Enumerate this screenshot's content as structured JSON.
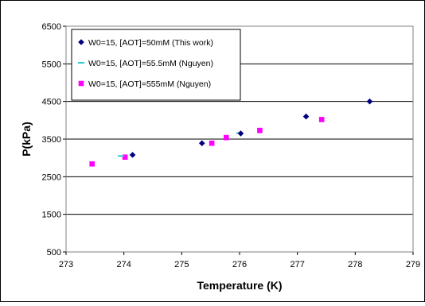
{
  "chart_data": {
    "type": "scatter",
    "xlabel": "Temperature (K)",
    "ylabel": "P(kPa)",
    "xlim": [
      273,
      279
    ],
    "ylim": [
      500,
      6500
    ],
    "xticks": [
      273,
      274,
      275,
      276,
      277,
      278,
      279
    ],
    "yticks": [
      500,
      1500,
      2500,
      3500,
      4500,
      5500,
      6500
    ],
    "xtick_labels": [
      "273",
      "274",
      "275",
      "276",
      "277",
      "278",
      "279"
    ],
    "ytick_labels": [
      "500",
      "1500",
      "2500",
      "3500",
      "4500",
      "5500",
      "6500"
    ],
    "grid": "horizontal major gridlines",
    "legend_position": "top-left",
    "series": [
      {
        "name": "W0=15, [AOT]=50mM (This work)",
        "marker": "diamond",
        "color": "#000080",
        "x": [
          274.15,
          275.35,
          276.02,
          277.15,
          278.25
        ],
        "y": [
          3080,
          3390,
          3650,
          4100,
          4500
        ]
      },
      {
        "name": "W0=15, [AOT]=55.5mM (Nguyen)",
        "marker": "dash",
        "color": "#33CCCC",
        "x": [
          273.95,
          276.0
        ],
        "y": [
          3050,
          3660
        ]
      },
      {
        "name": "W0=15, [AOT]=555mM (Nguyen)",
        "marker": "square",
        "color": "#FF00FF",
        "x": [
          273.45,
          274.02,
          275.52,
          275.77,
          276.35,
          277.42
        ],
        "y": [
          2840,
          3020,
          3390,
          3540,
          3730,
          4020
        ]
      }
    ]
  }
}
